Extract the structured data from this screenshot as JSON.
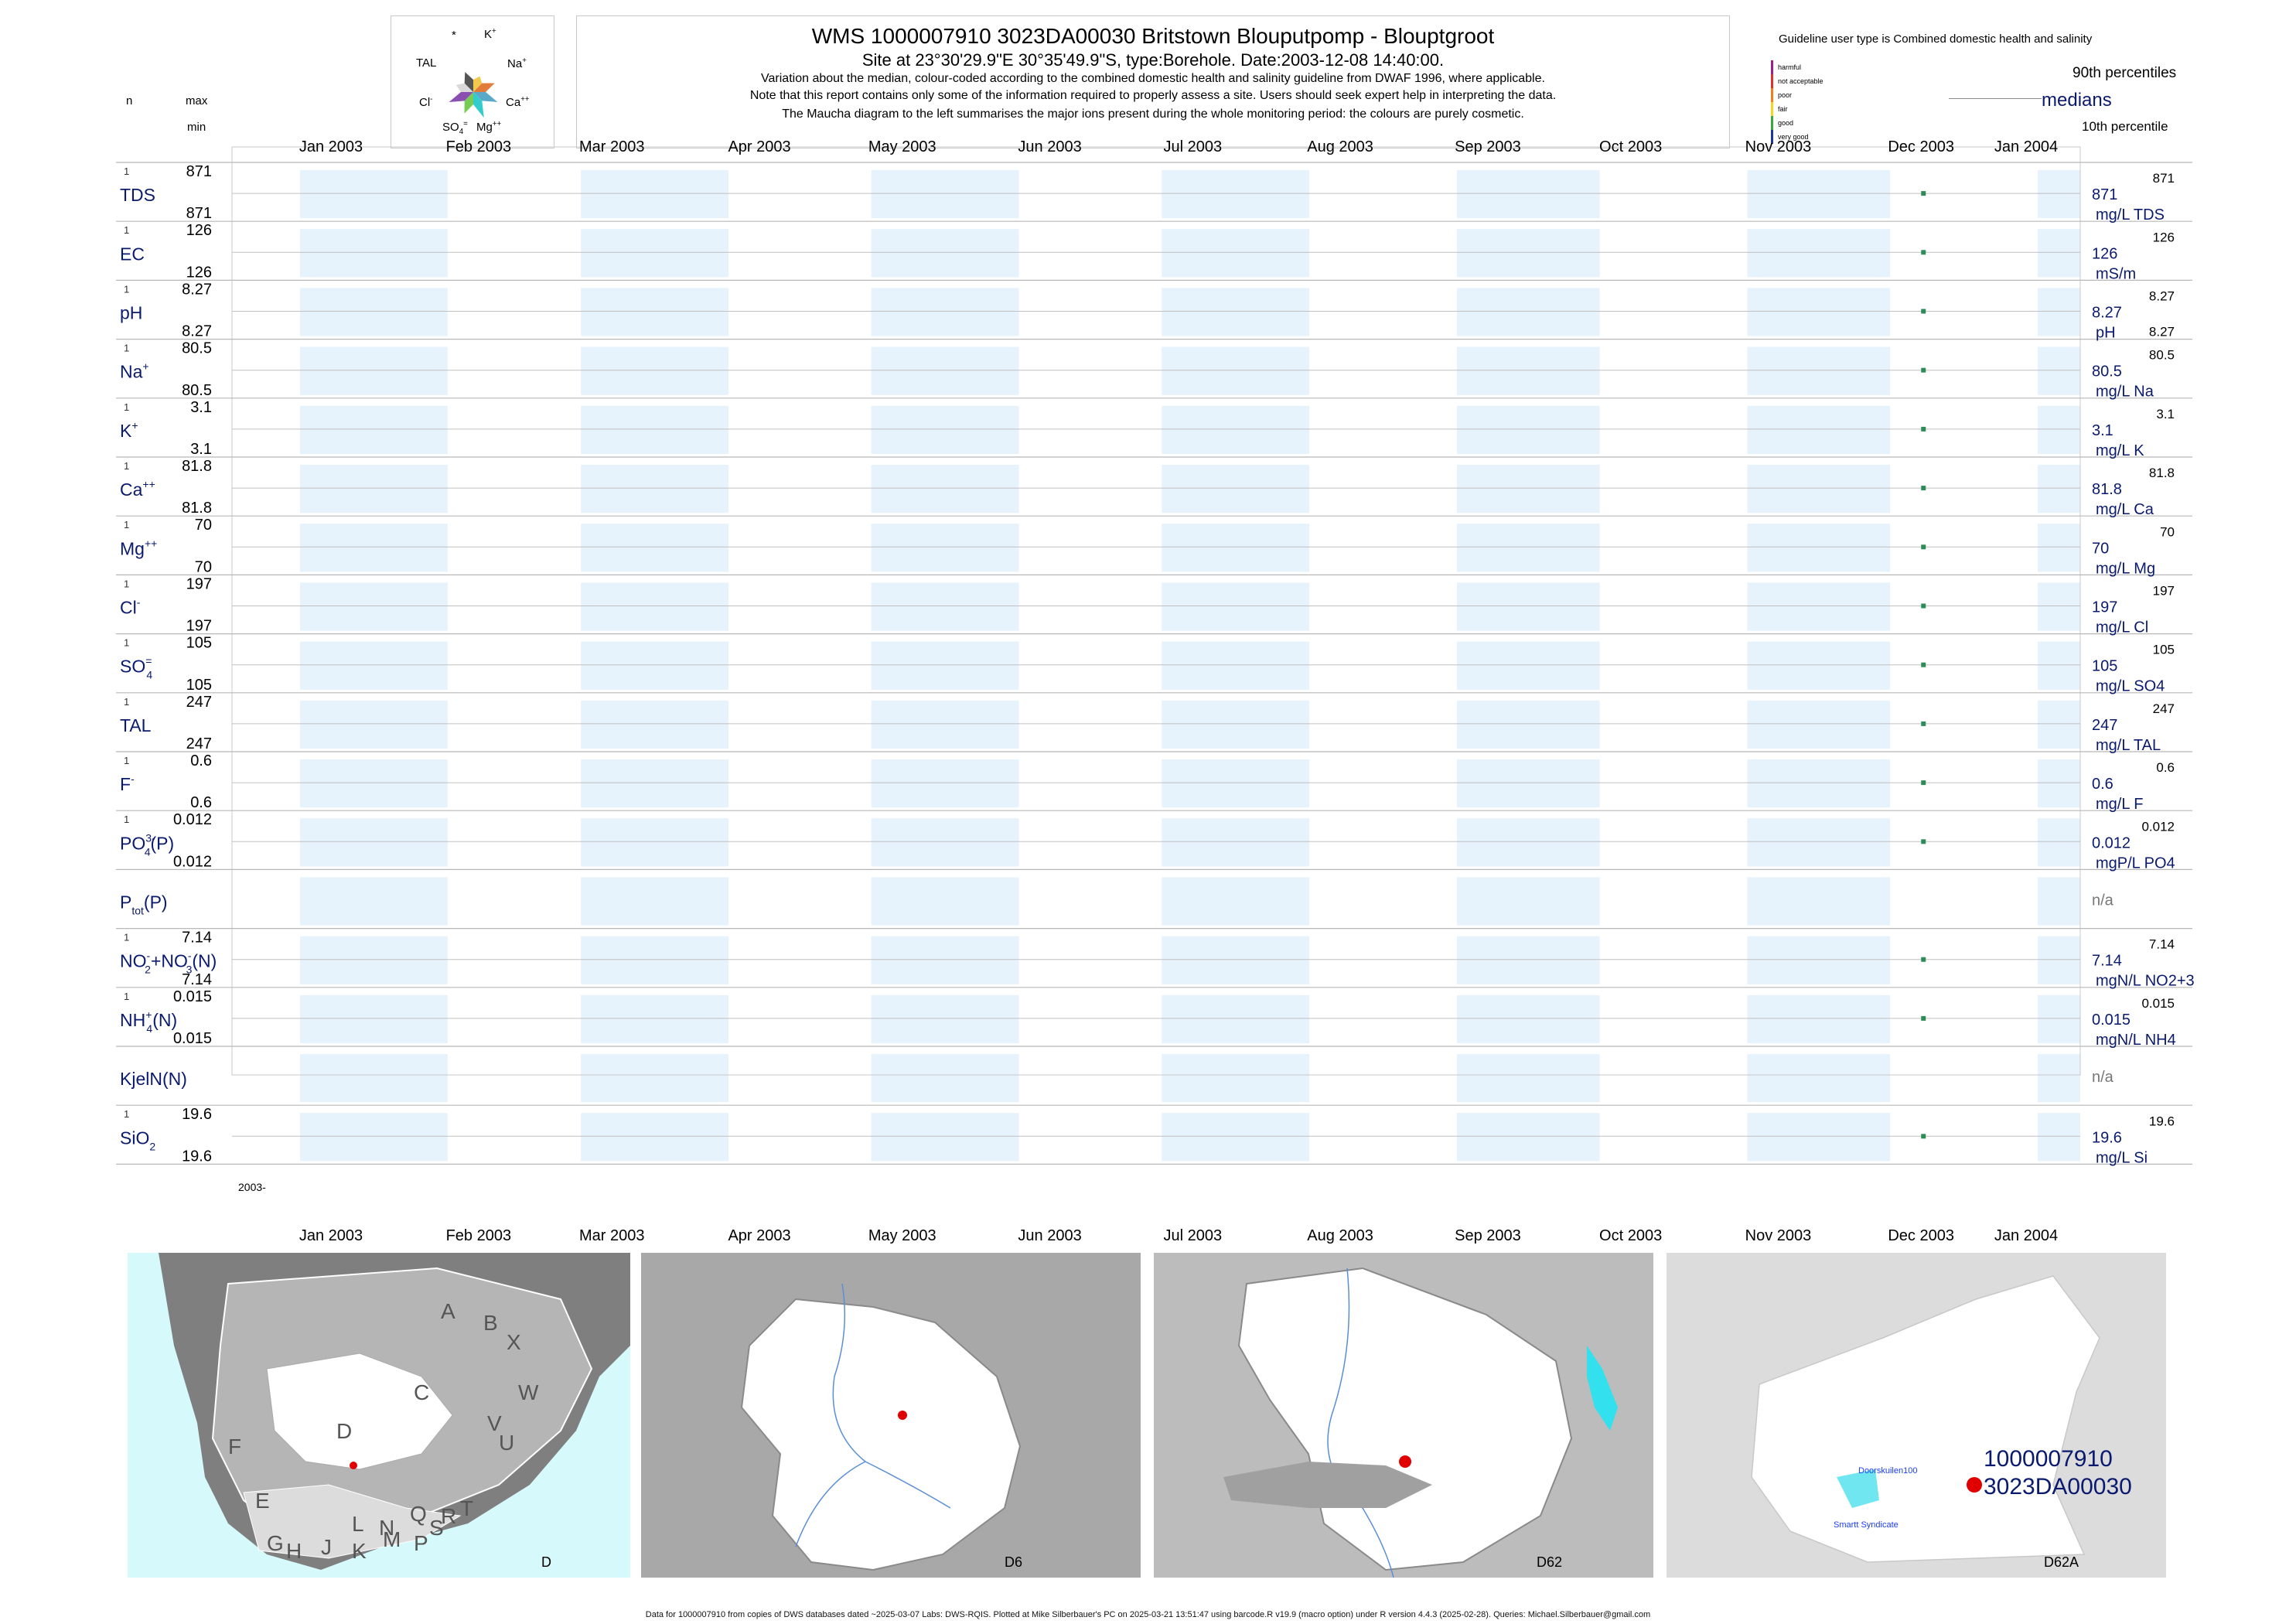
{
  "header": {
    "title": "WMS 1000007910 3023DA00030 Britstown Blouputpomp - Blouptgroot",
    "subtitle": "Site at 23°30'29.9\"E 30°35'49.9\"S, type:Borehole. Date:2003-12-08 14:40:00.",
    "note1": "Variation about the median,  colour-coded according to the combined domestic health and salinity guideline from DWAF 1996, where applicable.",
    "note2": "Note that this report contains only some of the information required to properly assess a site. Users should seek expert help in interpreting the data.",
    "note3": "The Maucha diagram to the left summarises the major ions present during the whole monitoring period: the colours are purely cosmetic."
  },
  "maucha": {
    "star": "*",
    "k": "K",
    "na": "Na",
    "ca": "Ca",
    "mg": "Mg",
    "so4": "SO",
    "cl": "Cl",
    "tal": "TAL",
    "colors": [
      "#f2c94c",
      "#e07b39",
      "#5aa9c8",
      "#33cccc",
      "#77cc55",
      "#8a4fb0",
      "#d9d9d9",
      "#555555"
    ]
  },
  "left_header": {
    "n": "n",
    "max": "max",
    "min": "min"
  },
  "legend": {
    "guideline": "Guideline user type is Combined domestic health and salinity",
    "p90": "90th percentiles",
    "medians": "medians",
    "p10": "10th percentile",
    "categories": [
      {
        "label": "harmful",
        "color": "#9b1f8f"
      },
      {
        "label": "not acceptable",
        "color": "#e0312a"
      },
      {
        "label": "poor",
        "color": "#f07e1b"
      },
      {
        "label": "fair",
        "color": "#f5d51e"
      },
      {
        "label": "good",
        "color": "#3aa83a"
      },
      {
        "label": "very good",
        "color": "#1c34a8"
      }
    ]
  },
  "axis": {
    "months": [
      "Jan 2003",
      "Feb 2003",
      "Mar 2003",
      "Apr 2003",
      "May 2003",
      "Jun 2003",
      "Jul 2003",
      "Aug 2003",
      "Sep 2003",
      "Oct 2003",
      "Nov 2003",
      "Dec 2003",
      "Jan 2004"
    ],
    "year_label": "2003-"
  },
  "chart_data": {
    "type": "scatter",
    "x_range": [
      "2003-01-01",
      "2004-01-01"
    ],
    "sample_date": "2003-12-08",
    "point_color": "#2e8b57",
    "band_color": "#e6f2fc",
    "series": [
      {
        "name": "TDS",
        "label": "TDS",
        "n": "1",
        "max": "871",
        "min": "871",
        "median": "871",
        "unit": "mg/L TDS",
        "p90": "871",
        "p10": "",
        "value": 871
      },
      {
        "name": "EC",
        "label": "EC",
        "n": "1",
        "max": "126",
        "min": "126",
        "median": "126",
        "unit": "mS/m",
        "p90": "126",
        "p10": "",
        "value": 126
      },
      {
        "name": "pH",
        "label": "pH",
        "n": "1",
        "max": "8.27",
        "min": "8.27",
        "median": "8.27",
        "unit": "pH",
        "p90": "8.27",
        "p10": "8.27",
        "value": 8.27
      },
      {
        "name": "Na",
        "label": "Na",
        "sup": "+",
        "n": "1",
        "max": "80.5",
        "min": "80.5",
        "median": "80.5",
        "unit": "mg/L Na",
        "p90": "80.5",
        "p10": "",
        "value": 80.5
      },
      {
        "name": "K",
        "label": "K",
        "sup": "+",
        "n": "1",
        "max": "3.1",
        "min": "3.1",
        "median": "3.1",
        "unit": "mg/L K",
        "p90": "3.1",
        "p10": "",
        "value": 3.1
      },
      {
        "name": "Ca",
        "label": "Ca",
        "sup": "++",
        "n": "1",
        "max": "81.8",
        "min": "81.8",
        "median": "81.8",
        "unit": "mg/L Ca",
        "p90": "81.8",
        "p10": "",
        "value": 81.8
      },
      {
        "name": "Mg",
        "label": "Mg",
        "sup": "++",
        "n": "1",
        "max": "70",
        "min": "70",
        "median": "70",
        "unit": "mg/L Mg",
        "p90": "70",
        "p10": "",
        "value": 70
      },
      {
        "name": "Cl",
        "label": "Cl",
        "sup": "-",
        "n": "1",
        "max": "197",
        "min": "197",
        "median": "197",
        "unit": "mg/L Cl",
        "p90": "197",
        "p10": "",
        "value": 197
      },
      {
        "name": "SO4",
        "label": "SO",
        "sub": "4",
        "sup": "=",
        "n": "1",
        "max": "105",
        "min": "105",
        "median": "105",
        "unit": "mg/L SO4",
        "p90": "105",
        "p10": "",
        "value": 105
      },
      {
        "name": "TAL",
        "label": "TAL",
        "n": "1",
        "max": "247",
        "min": "247",
        "median": "247",
        "unit": "mg/L TAL",
        "p90": "247",
        "p10": "",
        "value": 247
      },
      {
        "name": "F",
        "label": "F",
        "sup": "-",
        "n": "1",
        "max": "0.6",
        "min": "0.6",
        "median": "0.6",
        "unit": "mg/L F",
        "p90": "0.6",
        "p10": "",
        "value": 0.6
      },
      {
        "name": "PO4(P)",
        "label": "PO",
        "sub": "4",
        "sup": "3-",
        "suffix": "(P)",
        "n": "1",
        "max": "0.012",
        "min": "0.012",
        "median": "0.012",
        "unit": "mgP/L PO4",
        "p90": "0.012",
        "p10": "",
        "value": 0.012
      },
      {
        "name": "Ptot(P)",
        "label": "P",
        "sub": "tot",
        "suffix": "(P)",
        "n": "",
        "max": "",
        "min": "",
        "median": "n/a",
        "unit": "",
        "p90": "",
        "p10": "",
        "value": null
      },
      {
        "name": "NO2+NO3(N)",
        "label": "NO",
        "sub": "2",
        "sup": "-",
        "suffix": "+NO",
        "sub2": "3",
        "sup2": "-",
        "suffix2": "(N)",
        "n": "1",
        "max": "7.14",
        "min": "7.14",
        "median": "7.14",
        "unit": "mgN/L NO2+3",
        "p90": "7.14",
        "p10": "",
        "value": 7.14
      },
      {
        "name": "NH4(N)",
        "label": "NH",
        "sub": "4",
        "sup": "+",
        "suffix": "(N)",
        "n": "1",
        "max": "0.015",
        "min": "0.015",
        "median": "0.015",
        "unit": "mgN/L NH4",
        "p90": "0.015",
        "p10": "",
        "value": 0.015
      },
      {
        "name": "KjelN(N)",
        "label": "KjelN(N)",
        "n": "",
        "max": "",
        "min": "",
        "median": "n/a",
        "unit": "",
        "p90": "",
        "p10": "",
        "value": null
      },
      {
        "name": "SiO2",
        "label": "SiO",
        "sub": "2",
        "n": "1",
        "max": "19.6",
        "min": "19.6",
        "median": "19.6",
        "unit": "mg/L Si",
        "p90": "19.6",
        "p10": "",
        "value": 19.6
      }
    ]
  },
  "maps": {
    "m1": {
      "caption": "D",
      "letters": [
        "A",
        "B",
        "X",
        "W",
        "C",
        "V",
        "U",
        "D",
        "T",
        "F",
        "E",
        "S",
        "R",
        "Q",
        "P",
        "N",
        "L",
        "M",
        "K",
        "J",
        "H",
        "G"
      ]
    },
    "m2": {
      "caption": "D6"
    },
    "m3": {
      "caption": "D62"
    },
    "m4": {
      "caption": "D62A",
      "site_line1": "1000007910",
      "site_line2": "3023DA00030",
      "place1": "Doorskuilen100",
      "place2": "Smartt Syndicate"
    }
  },
  "footer": "Data for 1000007910 from copies of DWS databases dated ~2025-03-07 Labs: DWS-RQIS. Plotted at Mike Silberbauer's PC on 2025-03-21 13:51:47 using barcode.R v19.9 (macro option) under R version 4.4.3 (2025-02-28). Queries: Michael.Silberbauer@gmail.com"
}
